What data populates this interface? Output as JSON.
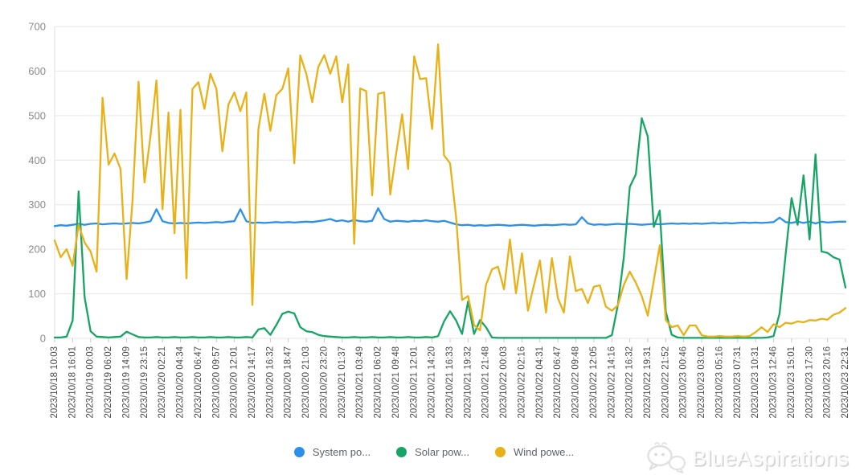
{
  "chart_data": {
    "type": "line",
    "title": "",
    "xlabel": "",
    "ylabel": "",
    "grid": true,
    "legend_position": "bottom",
    "x_label_point_stride": 3,
    "y_axis": {
      "min": 0,
      "max": 700,
      "tick_step": 100,
      "ticks": [
        0,
        100,
        200,
        300,
        400,
        500,
        600,
        700
      ]
    },
    "x_labels": [
      "2023/10/18 10:03",
      "2023/10/18 16:01",
      "2023/10/19 00:03",
      "2023/10/19 06:02",
      "2023/10/19 14:09",
      "2023/10/19 23:15",
      "2023/10/20 02:21",
      "2023/10/20 04:34",
      "2023/10/20 06:47",
      "2023/10/20 09:57",
      "2023/10/20 12:01",
      "2023/10/20 14:17",
      "2023/10/20 16:32",
      "2023/10/20 18:47",
      "2023/10/20 21:03",
      "2023/10/20 23:20",
      "2023/10/21 01:37",
      "2023/10/21 03:49",
      "2023/10/21 06:02",
      "2023/10/21 09:48",
      "2023/10/21 12:01",
      "2023/10/21 14:20",
      "2023/10/21 16:33",
      "2023/10/21 19:32",
      "2023/10/21 21:48",
      "2023/10/22 00:03",
      "2023/10/22 02:16",
      "2023/10/22 04:31",
      "2023/10/22 06:47",
      "2023/10/22 09:48",
      "2023/10/22 12:05",
      "2023/10/22 14:16",
      "2023/10/22 16:32",
      "2023/10/22 19:31",
      "2023/10/22 21:52",
      "2023/10/23 00:46",
      "2023/10/23 03:02",
      "2023/10/23 05:16",
      "2023/10/23 07:31",
      "2023/10/23 10:31",
      "2023/10/23 12:46",
      "2023/10/23 15:01",
      "2023/10/23 17:30",
      "2023/10/23 20:16",
      "2023/10/23 22:31"
    ],
    "series": [
      {
        "name": "System po...",
        "color": "#2b90e9",
        "values": [
          252,
          254,
          253,
          255,
          257,
          255,
          257,
          258,
          256,
          257,
          258,
          257,
          258,
          259,
          258,
          260,
          263,
          290,
          263,
          259,
          258,
          259,
          258,
          259,
          260,
          259,
          260,
          261,
          260,
          262,
          263,
          290,
          263,
          259,
          260,
          259,
          260,
          261,
          260,
          261,
          260,
          261,
          262,
          261,
          263,
          265,
          268,
          263,
          265,
          262,
          266,
          263,
          262,
          264,
          292,
          268,
          262,
          264,
          263,
          262,
          264,
          263,
          265,
          263,
          262,
          264,
          260,
          256,
          254,
          255,
          253,
          254,
          253,
          254,
          255,
          254,
          253,
          254,
          255,
          254,
          253,
          254,
          255,
          254,
          255,
          256,
          255,
          256,
          272,
          258,
          255,
          256,
          255,
          256,
          257,
          256,
          257,
          256,
          255,
          256,
          257,
          256,
          257,
          258,
          257,
          258,
          257,
          258,
          257,
          258,
          259,
          258,
          259,
          258,
          259,
          260,
          259,
          260,
          259,
          260,
          261,
          271,
          261,
          259,
          262,
          259,
          262,
          258,
          262,
          260,
          261,
          262,
          262
        ]
      },
      {
        "name": "Solar pow...",
        "color": "#17a566",
        "values": [
          2,
          2,
          4,
          40,
          330,
          92,
          16,
          4,
          3,
          2,
          3,
          4,
          15,
          9,
          3,
          2,
          2,
          3,
          2,
          2,
          3,
          2,
          2,
          3,
          2,
          2,
          3,
          2,
          2,
          3,
          2,
          2,
          3,
          2,
          20,
          23,
          8,
          30,
          55,
          60,
          56,
          25,
          16,
          14,
          8,
          5,
          4,
          3,
          2,
          2,
          3,
          2,
          2,
          3,
          2,
          2,
          3,
          2,
          2,
          3,
          2,
          2,
          3,
          2,
          5,
          38,
          61,
          40,
          10,
          83,
          10,
          41,
          25,
          2,
          1,
          1,
          1,
          1,
          1,
          1,
          1,
          1,
          1,
          1,
          1,
          1,
          1,
          1,
          1,
          1,
          1,
          1,
          1,
          7,
          74,
          182,
          340,
          368,
          494,
          453,
          250,
          287,
          60,
          8,
          2,
          1,
          1,
          1,
          1,
          1,
          1,
          1,
          1,
          1,
          1,
          1,
          1,
          1,
          1,
          2,
          5,
          56,
          188,
          315,
          255,
          366,
          222,
          413,
          195,
          192,
          182,
          177,
          114
        ]
      },
      {
        "name": "Wind powe...",
        "color": "#e9b118",
        "values": [
          220,
          182,
          200,
          163,
          255,
          215,
          195,
          150,
          540,
          390,
          415,
          380,
          133,
          310,
          576,
          350,
          455,
          579,
          290,
          507,
          236,
          513,
          135,
          560,
          575,
          515,
          594,
          560,
          420,
          525,
          552,
          510,
          552,
          75,
          470,
          549,
          466,
          546,
          560,
          606,
          393,
          635,
          594,
          530,
          609,
          636,
          594,
          633,
          530,
          615,
          212,
          561,
          555,
          321,
          549,
          552,
          323,
          415,
          503,
          380,
          633,
          582,
          584,
          470,
          660,
          411,
          393,
          272,
          86,
          95,
          30,
          18,
          120,
          155,
          161,
          110,
          222,
          101,
          191,
          62,
          120,
          175,
          58,
          180,
          90,
          58,
          184,
          106,
          111,
          79,
          116,
          119,
          71,
          62,
          74,
          120,
          150,
          125,
          95,
          51,
          130,
          209,
          41,
          25,
          29,
          7,
          29,
          29,
          7,
          4,
          4,
          5,
          4,
          4,
          5,
          4,
          5,
          14,
          25,
          14,
          32,
          25,
          35,
          33,
          38,
          36,
          41,
          40,
          44,
          42,
          53,
          58,
          68
        ]
      }
    ]
  },
  "legend": {
    "items": [
      {
        "label": "System po...",
        "color": "#2b90e9"
      },
      {
        "label": "Solar pow...",
        "color": "#17a566"
      },
      {
        "label": "Wind powe...",
        "color": "#e9b118"
      }
    ]
  },
  "watermark": {
    "text": "BlueAspirations"
  }
}
